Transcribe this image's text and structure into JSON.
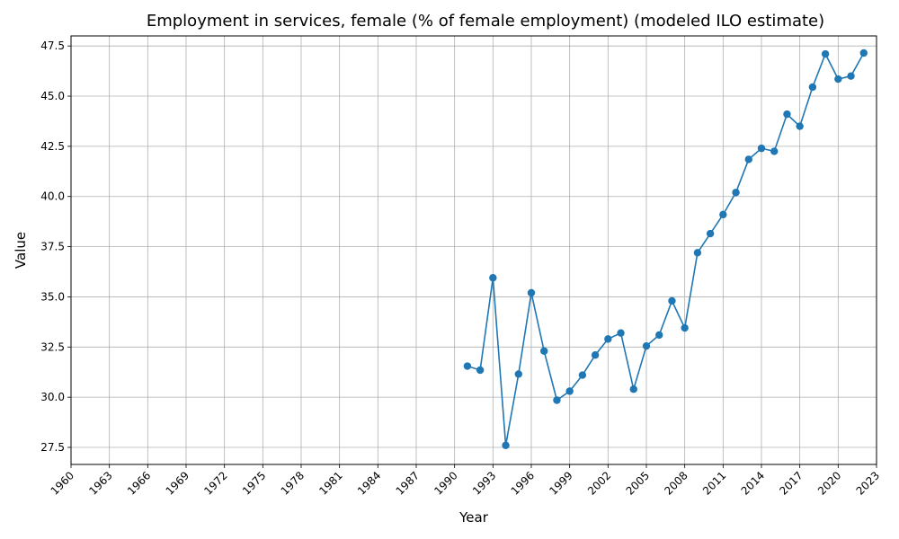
{
  "chart_data": {
    "type": "line",
    "title": "Employment in services, female (% of female employment) (modeled ILO estimate)",
    "xlabel": "Year",
    "ylabel": "Value",
    "xlim": [
      1960,
      2023
    ],
    "ylim": [
      26.65,
      48.0
    ],
    "xticks": [
      1960,
      1963,
      1966,
      1969,
      1972,
      1975,
      1978,
      1981,
      1984,
      1987,
      1990,
      1993,
      1996,
      1999,
      2002,
      2005,
      2008,
      2011,
      2014,
      2017,
      2020,
      2023
    ],
    "yticks": [
      "27.5",
      "30.0",
      "32.5",
      "35.0",
      "37.5",
      "40.0",
      "42.5",
      "45.0",
      "47.5"
    ],
    "grid": true,
    "color": "#1f77b4",
    "series": [
      {
        "x": [
          1991,
          1992,
          1993,
          1994,
          1995,
          1996,
          1997,
          1998,
          1999,
          2000,
          2001,
          2002,
          2003,
          2004,
          2005,
          2006,
          2007,
          2008,
          2009,
          2010,
          2011,
          2012,
          2013,
          2014,
          2015,
          2016,
          2017,
          2018,
          2019,
          2020,
          2021,
          2022
        ],
        "values": [
          31.55,
          31.35,
          35.95,
          27.6,
          31.15,
          35.2,
          32.3,
          29.85,
          30.3,
          31.1,
          32.1,
          32.9,
          33.2,
          30.4,
          32.55,
          33.1,
          34.8,
          33.45,
          37.2,
          38.15,
          39.1,
          40.2,
          41.85,
          42.4,
          42.25,
          44.1,
          43.5,
          45.45,
          47.1,
          45.85,
          46.0,
          47.15
        ]
      }
    ]
  }
}
